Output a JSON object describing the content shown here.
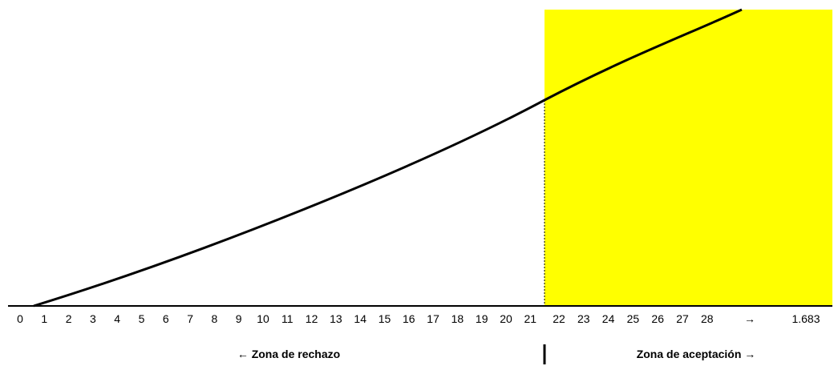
{
  "axis_labels": [
    "0",
    "1",
    "2",
    "3",
    "4",
    "5",
    "6",
    "7",
    "8",
    "9",
    "10",
    "11",
    "12",
    "13",
    "14",
    "15",
    "16",
    "17",
    "18",
    "19",
    "20",
    "21",
    "22",
    "23",
    "24",
    "25",
    "26",
    "27",
    "28",
    "→",
    "1.683"
  ],
  "zones": {
    "rejection": "← Zona de rechazo",
    "acceptance": "Zona de aceptación →"
  }
}
